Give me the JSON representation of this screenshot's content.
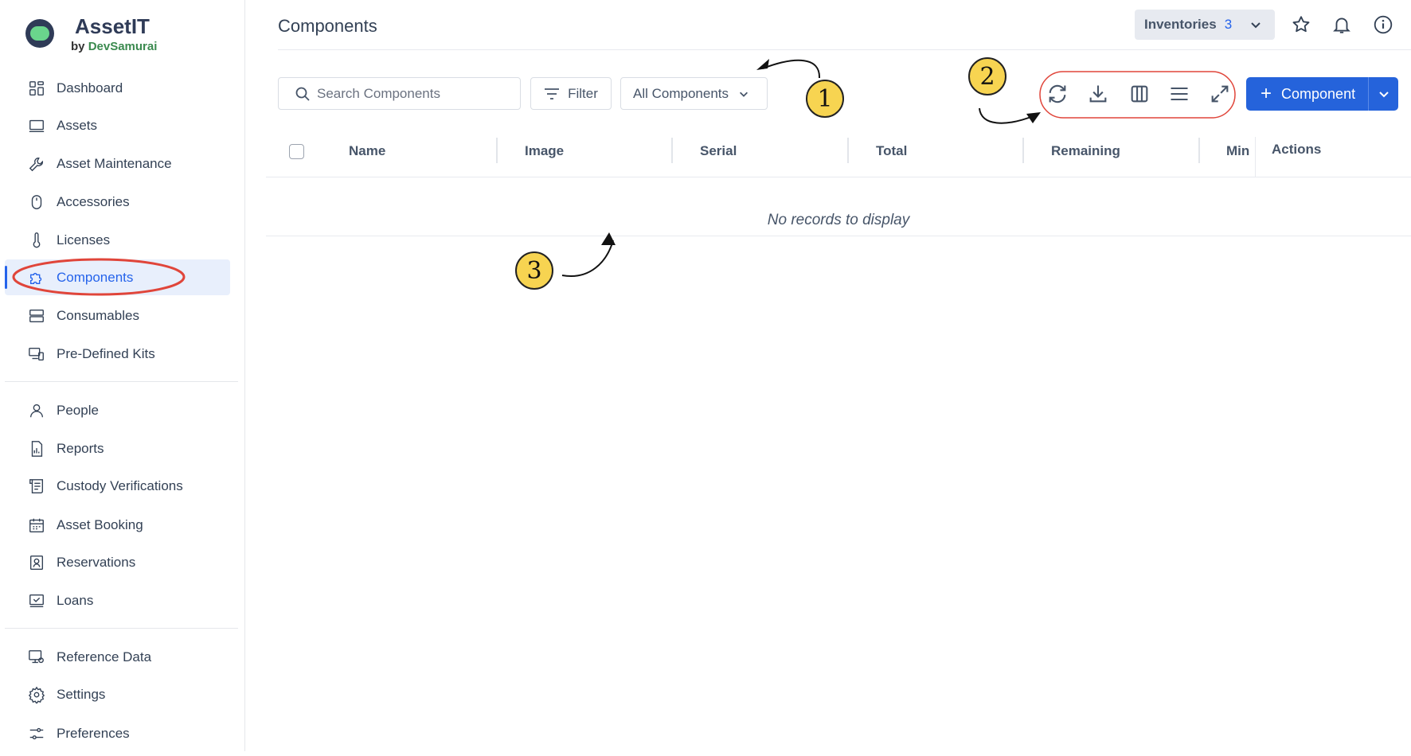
{
  "app": {
    "name": "AssetIT",
    "by": "by",
    "vendor": "DevSamurai"
  },
  "sidebar": {
    "groups": [
      [
        {
          "label": "Dashboard",
          "icon": "grid-icon"
        },
        {
          "label": "Assets",
          "icon": "laptop-icon"
        },
        {
          "label": "Asset Maintenance",
          "icon": "wrench-icon"
        },
        {
          "label": "Accessories",
          "icon": "mouse-icon"
        },
        {
          "label": "Licenses",
          "icon": "thermometer-icon"
        },
        {
          "label": "Components",
          "icon": "puzzle-icon",
          "active": true
        },
        {
          "label": "Consumables",
          "icon": "server-icon"
        },
        {
          "label": "Pre-Defined Kits",
          "icon": "devices-icon"
        }
      ],
      [
        {
          "label": "People",
          "icon": "user-icon"
        },
        {
          "label": "Reports",
          "icon": "report-icon"
        },
        {
          "label": "Custody Verifications",
          "icon": "scroll-icon"
        },
        {
          "label": "Asset Booking",
          "icon": "calendar-icon"
        },
        {
          "label": "Reservations",
          "icon": "badge-icon"
        },
        {
          "label": "Loans",
          "icon": "check-screen-icon"
        }
      ],
      [
        {
          "label": "Reference Data",
          "icon": "monitor-icon"
        },
        {
          "label": "Settings",
          "icon": "gear-icon"
        },
        {
          "label": "Preferences",
          "icon": "sliders-icon"
        }
      ]
    ]
  },
  "header": {
    "title": "Components",
    "inventories_label": "Inventories",
    "inventories_count": "3"
  },
  "toolbar": {
    "search_placeholder": "Search Components",
    "filter_label": "Filter",
    "view_select": "All Components",
    "tools": [
      "refresh-icon",
      "download-icon",
      "columns-icon",
      "density-icon",
      "fullscreen-icon"
    ],
    "add_label": "Component"
  },
  "table": {
    "columns": [
      "Name",
      "Image",
      "Serial",
      "Total",
      "Remaining",
      "Min",
      "Actions"
    ],
    "empty_text": "No records to display"
  },
  "annotations": [
    "1",
    "2",
    "3"
  ],
  "colors": {
    "accent": "#2563db",
    "annotation_ring": "#e0453a",
    "annotation_badge": "#f7d451"
  }
}
